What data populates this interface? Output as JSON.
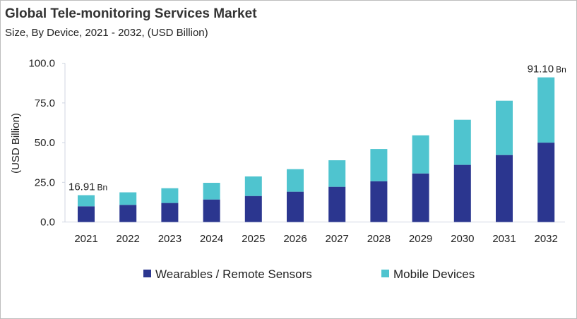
{
  "chart_data": {
    "type": "bar",
    "stacked": true,
    "title": "Global Tele-monitoring Services Market",
    "subtitle": "Size, By Device, 2021 - 2032, (USD Billion)",
    "xlabel": "",
    "ylabel": "(USD Billion)",
    "ylim": [
      0,
      100
    ],
    "yticks": [
      "0.0",
      "25.0",
      "50.0",
      "75.0",
      "100.0"
    ],
    "grid": false,
    "legend": "bottom",
    "categories": [
      "2021",
      "2022",
      "2023",
      "2024",
      "2025",
      "2026",
      "2027",
      "2028",
      "2029",
      "2030",
      "2031",
      "2032"
    ],
    "series": [
      {
        "name": "Wearables / Remote Sensors",
        "color": "#2b368f",
        "values": [
          9.9,
          10.8,
          12.0,
          14.2,
          16.4,
          19.1,
          22.2,
          25.7,
          30.6,
          36.0,
          42.2,
          50.0
        ]
      },
      {
        "name": "Mobile Devices",
        "color": "#4fc4cf",
        "values": [
          7.01,
          7.9,
          9.3,
          10.5,
          12.3,
          14.2,
          16.7,
          20.3,
          24.0,
          28.4,
          34.2,
          41.1
        ]
      }
    ],
    "annotations": [
      {
        "category": "2021",
        "value": "16.91",
        "unit": "Bn"
      },
      {
        "category": "2032",
        "value": "91.10",
        "unit": "Bn"
      }
    ]
  }
}
